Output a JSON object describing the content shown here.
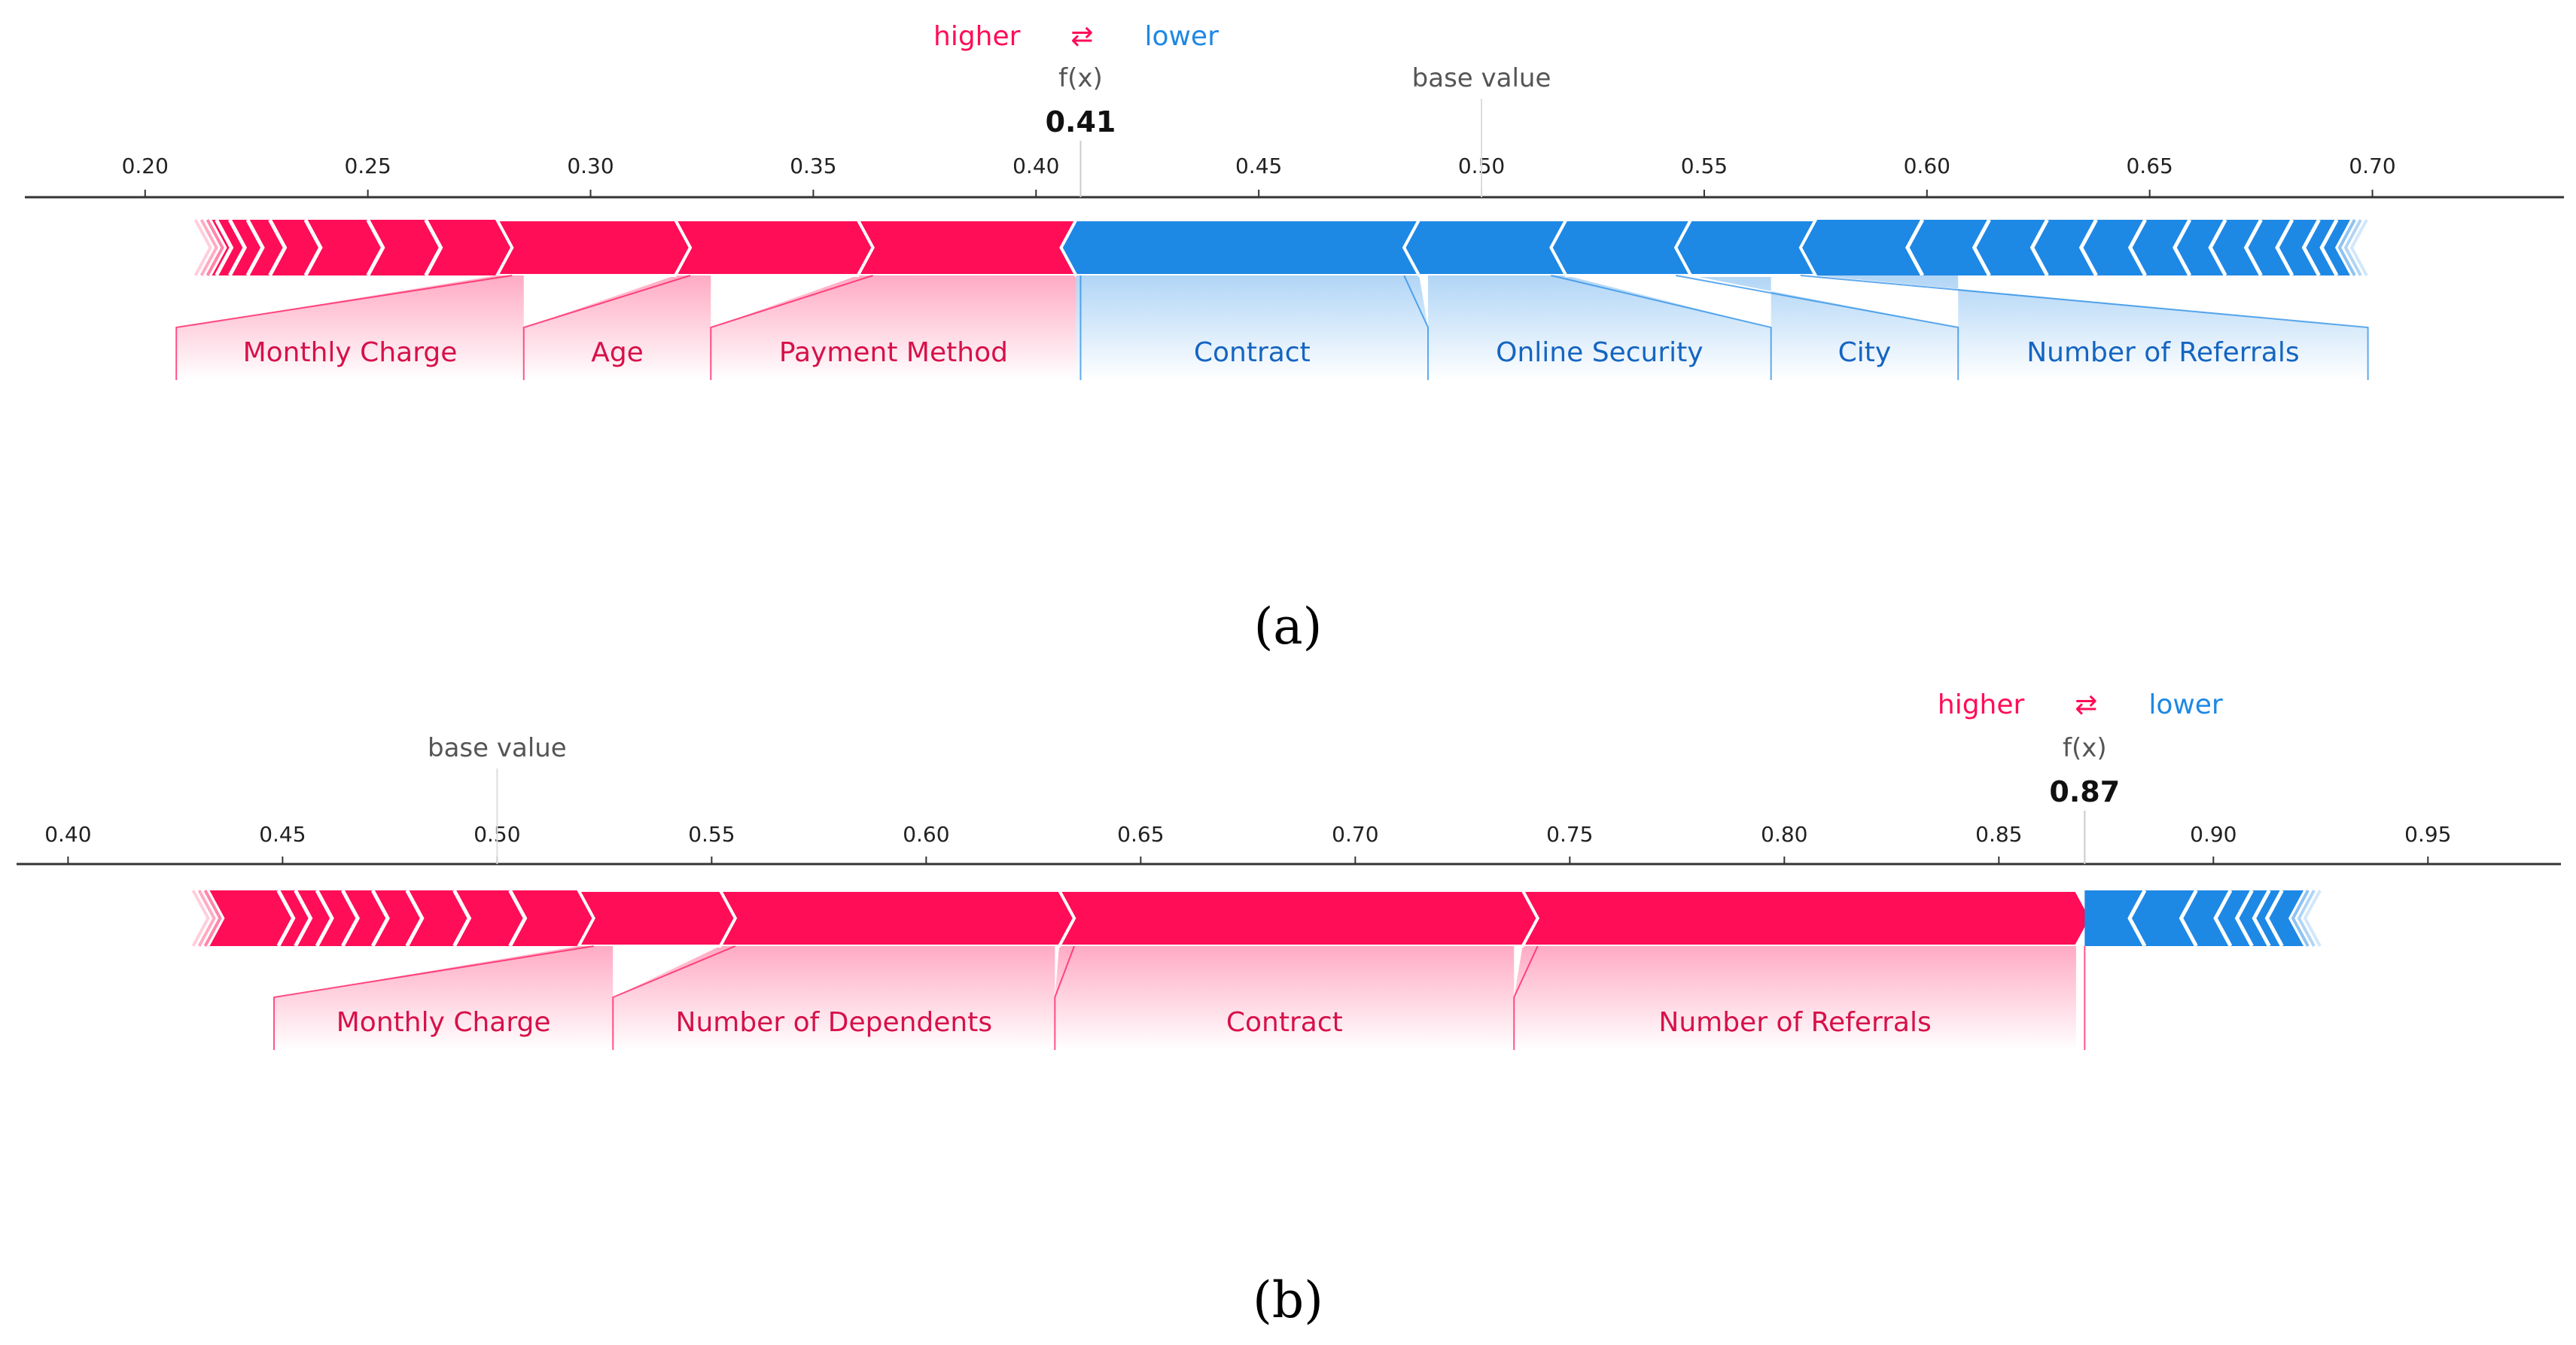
{
  "chart_data": [
    {
      "type": "force_plot",
      "panel_label": "a",
      "legend": {
        "higher": "higher",
        "arrow": "⇄",
        "lower": "lower"
      },
      "output_label": "f(x)",
      "output_value": 0.41,
      "output_value_text": "0.41",
      "base_value": 0.5,
      "base_value_label": "base value",
      "xlim": [
        0.173,
        0.743
      ],
      "ticks": [
        0.2,
        0.25,
        0.3,
        0.35,
        0.4,
        0.45,
        0.5,
        0.55,
        0.6,
        0.65,
        0.7
      ],
      "tick_labels": [
        "0.20",
        "0.25",
        "0.30",
        "0.35",
        "0.40",
        "0.45",
        "0.50",
        "0.55",
        "0.60",
        "0.65",
        "0.70"
      ],
      "bar_range": [
        0.215,
        0.695
      ],
      "higher_features": [
        {
          "name": "Payment Method",
          "start": 0.36,
          "end": 0.409,
          "label_range": [
            0.327,
            0.409
          ]
        },
        {
          "name": "Age",
          "start": 0.319,
          "end": 0.36,
          "label_range": [
            0.285,
            0.327
          ]
        },
        {
          "name": "Monthly Charge",
          "start": 0.279,
          "end": 0.319,
          "label_range": [
            0.207,
            0.285
          ]
        }
      ],
      "higher_small_boundaries": [
        0.263,
        0.25,
        0.236,
        0.228,
        0.223,
        0.219,
        0.216
      ],
      "lower_features": [
        {
          "name": "Contract",
          "start": 0.409,
          "end": 0.486,
          "label_range": [
            0.409,
            0.488
          ]
        },
        {
          "name": "Online Security",
          "start": 0.486,
          "end": 0.519,
          "label_range": [
            0.488,
            0.565
          ]
        },
        {
          "name": "City",
          "start": 0.519,
          "end": 0.547,
          "label_range": [
            0.565,
            0.607
          ]
        },
        {
          "name": "Number of Referrals",
          "start": 0.547,
          "end": 0.575,
          "label_range": [
            0.607,
            0.699
          ]
        }
      ],
      "lower_small_boundaries": [
        0.599,
        0.614,
        0.627,
        0.638,
        0.649,
        0.659,
        0.667,
        0.675,
        0.682,
        0.688,
        0.692
      ]
    },
    {
      "type": "force_plot",
      "panel_label": "b",
      "legend": {
        "higher": "higher",
        "arrow": "⇄",
        "lower": "lower"
      },
      "output_label": "f(x)",
      "output_value": 0.87,
      "output_value_text": "0.87",
      "base_value": 0.5,
      "base_value_label": "base value",
      "xlim": [
        0.388,
        0.981
      ],
      "ticks": [
        0.4,
        0.45,
        0.5,
        0.55,
        0.6,
        0.65,
        0.7,
        0.75,
        0.8,
        0.85,
        0.9,
        0.95
      ],
      "tick_labels": [
        "0.40",
        "0.45",
        "0.50",
        "0.55",
        "0.60",
        "0.65",
        "0.70",
        "0.75",
        "0.80",
        "0.85",
        "0.90",
        "0.95"
      ],
      "bar_range": [
        0.433,
        0.921
      ],
      "higher_features": [
        {
          "name": "Number of Referrals",
          "start": 0.739,
          "end": 0.868,
          "label_range": [
            0.737,
            0.868
          ]
        },
        {
          "name": "Contract",
          "start": 0.631,
          "end": 0.739,
          "label_range": [
            0.63,
            0.737
          ]
        },
        {
          "name": "Number of Dependents",
          "start": 0.552,
          "end": 0.631,
          "label_range": [
            0.527,
            0.63
          ]
        },
        {
          "name": "Monthly Charge",
          "start": 0.519,
          "end": 0.552,
          "label_range": [
            0.448,
            0.527
          ]
        }
      ],
      "higher_small_boundaries": [
        0.503,
        0.49,
        0.479,
        0.471,
        0.464,
        0.458,
        0.453,
        0.449
      ],
      "lower_features": [],
      "lower_small_boundaries": [
        0.884,
        0.896,
        0.904,
        0.909,
        0.913,
        0.916
      ]
    }
  ],
  "captions": [
    "(a)",
    "(b)"
  ],
  "colors": {
    "higher": "#ff0d57",
    "higher_text": "#d6114a",
    "lower": "#1e88e5",
    "lower_text": "#1565c0",
    "axis": "#333333",
    "muted": "#555555"
  }
}
